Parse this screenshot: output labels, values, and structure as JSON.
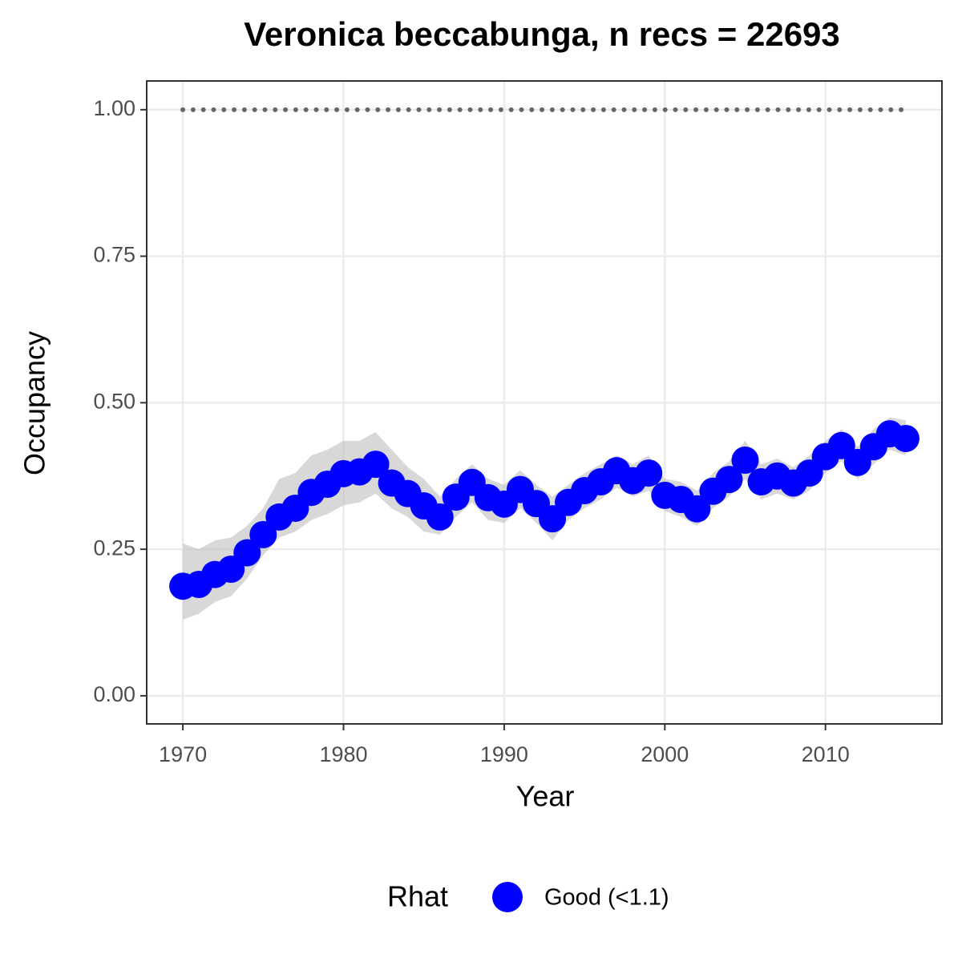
{
  "chart_data": {
    "type": "line",
    "title": "Veronica beccabunga, n recs = 22693",
    "x_label": "Year",
    "y_label": "Occupancy",
    "legend_title": "Rhat",
    "x": [
      1970,
      1971,
      1972,
      1973,
      1974,
      1975,
      1976,
      1977,
      1978,
      1979,
      1980,
      1981,
      1982,
      1983,
      1984,
      1985,
      1986,
      1987,
      1988,
      1989,
      1990,
      1991,
      1992,
      1993,
      1994,
      1995,
      1996,
      1997,
      1998,
      1999,
      2000,
      2001,
      2002,
      2003,
      2004,
      2005,
      2006,
      2007,
      2008,
      2009,
      2010,
      2011,
      2012,
      2013,
      2014,
      2015
    ],
    "series": [
      {
        "name": "Good (<1.1)",
        "color": "#0000ff",
        "values": [
          0.187,
          0.19,
          0.207,
          0.216,
          0.244,
          0.275,
          0.305,
          0.32,
          0.347,
          0.361,
          0.379,
          0.382,
          0.395,
          0.363,
          0.345,
          0.324,
          0.305,
          0.339,
          0.364,
          0.338,
          0.327,
          0.352,
          0.328,
          0.302,
          0.33,
          0.35,
          0.365,
          0.384,
          0.367,
          0.38,
          0.342,
          0.335,
          0.319,
          0.349,
          0.369,
          0.402,
          0.365,
          0.375,
          0.363,
          0.38,
          0.408,
          0.427,
          0.398,
          0.425,
          0.447,
          0.439
        ]
      }
    ],
    "band": {
      "color": "#bebebe",
      "lower": [
        0.13,
        0.14,
        0.16,
        0.17,
        0.2,
        0.24,
        0.27,
        0.28,
        0.3,
        0.31,
        0.325,
        0.33,
        0.345,
        0.32,
        0.305,
        0.28,
        0.275,
        0.305,
        0.33,
        0.3,
        0.295,
        0.32,
        0.295,
        0.265,
        0.3,
        0.32,
        0.335,
        0.355,
        0.34,
        0.35,
        0.315,
        0.305,
        0.29,
        0.32,
        0.34,
        0.37,
        0.335,
        0.345,
        0.335,
        0.35,
        0.38,
        0.4,
        0.37,
        0.395,
        0.42,
        0.41
      ],
      "upper": [
        0.26,
        0.25,
        0.265,
        0.27,
        0.29,
        0.32,
        0.37,
        0.38,
        0.41,
        0.42,
        0.435,
        0.435,
        0.45,
        0.42,
        0.39,
        0.37,
        0.34,
        0.37,
        0.395,
        0.37,
        0.36,
        0.385,
        0.36,
        0.34,
        0.36,
        0.38,
        0.395,
        0.41,
        0.395,
        0.41,
        0.37,
        0.365,
        0.35,
        0.38,
        0.4,
        0.435,
        0.395,
        0.405,
        0.39,
        0.41,
        0.435,
        0.455,
        0.425,
        0.455,
        0.475,
        0.47
      ]
    },
    "hline": {
      "value": 1,
      "color": "#666666"
    },
    "xlim": [
      1967.75,
      2017.25
    ],
    "ylim": [
      -0.048,
      1.049
    ],
    "xticks": [
      1970,
      1980,
      1990,
      2000,
      2010
    ],
    "yticks": [
      {
        "value": 0,
        "label": "0.00"
      },
      {
        "value": 0.25,
        "label": "0.25"
      },
      {
        "value": 0.5,
        "label": "0.50"
      },
      {
        "value": 0.75,
        "label": "0.75"
      },
      {
        "value": 1,
        "label": "1.00"
      }
    ],
    "grid": true,
    "legend_position": "bottom"
  }
}
